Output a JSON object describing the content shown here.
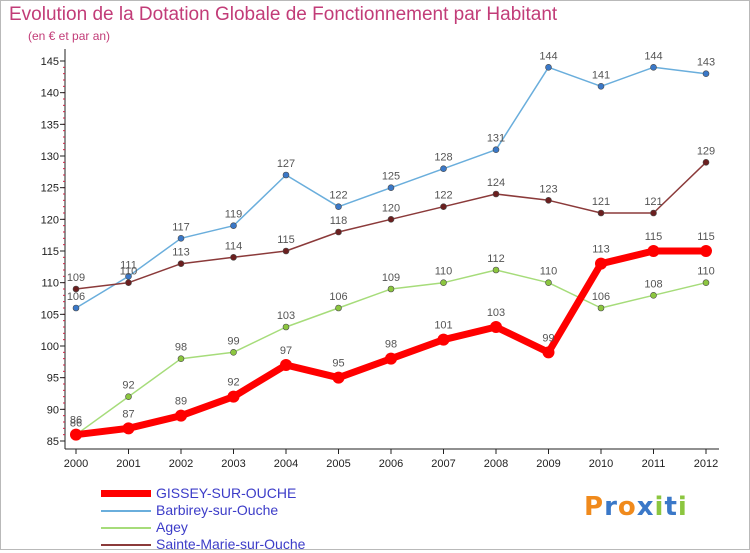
{
  "title": "Evolution de la Dotation Globale de Fonctionnement par Habitant",
  "subtitle": "(en € et par an)",
  "logo": {
    "text": "Proxiti",
    "letters": [
      "P",
      "r",
      "o",
      "x",
      "i",
      "t",
      "i"
    ],
    "colors": [
      "#f08a1c",
      "#3a78c8",
      "#f08a1c",
      "#3a78c8",
      "#8cc63f",
      "#3a78c8",
      "#8cc63f"
    ]
  },
  "chart_data": {
    "type": "line",
    "title": "Evolution de la Dotation Globale de Fonctionnement par Habitant",
    "subtitle": "(en € et par an)",
    "x": [
      "2000",
      "2001",
      "2002",
      "2003",
      "2004",
      "2005",
      "2006",
      "2007",
      "2008",
      "2009",
      "2010",
      "2011",
      "2012"
    ],
    "y_ticks": [
      85,
      90,
      95,
      100,
      105,
      110,
      115,
      120,
      125,
      130,
      135,
      140,
      145
    ],
    "ylim": [
      85,
      145
    ],
    "grid": false,
    "legend_position": "bottom-left",
    "series": [
      {
        "name": "GISSEY-SUR-OUCHE",
        "color": "#ff0000",
        "marker": "#ff0000",
        "width": 7,
        "values": [
          86,
          87,
          89,
          92,
          97,
          95,
          98,
          101,
          103,
          99,
          113,
          115,
          115
        ]
      },
      {
        "name": "Barbirey-sur-Ouche",
        "color": "#6aaedc",
        "marker": "#3a78c8",
        "width": 1.5,
        "values": [
          106,
          111,
          117,
          119,
          127,
          122,
          125,
          128,
          131,
          144,
          141,
          144,
          143
        ]
      },
      {
        "name": "Agey",
        "color": "#a6dc7a",
        "marker": "#8cc63f",
        "width": 1.5,
        "values": [
          86,
          92,
          98,
          99,
          103,
          106,
          109,
          110,
          112,
          110,
          106,
          108,
          110
        ]
      },
      {
        "name": "Sainte-Marie-sur-Ouche",
        "color": "#8b3a3a",
        "marker": "#6b1f1f",
        "width": 1.5,
        "values": [
          109,
          110,
          113,
          114,
          115,
          118,
          120,
          122,
          124,
          123,
          121,
          121,
          129
        ]
      }
    ]
  }
}
